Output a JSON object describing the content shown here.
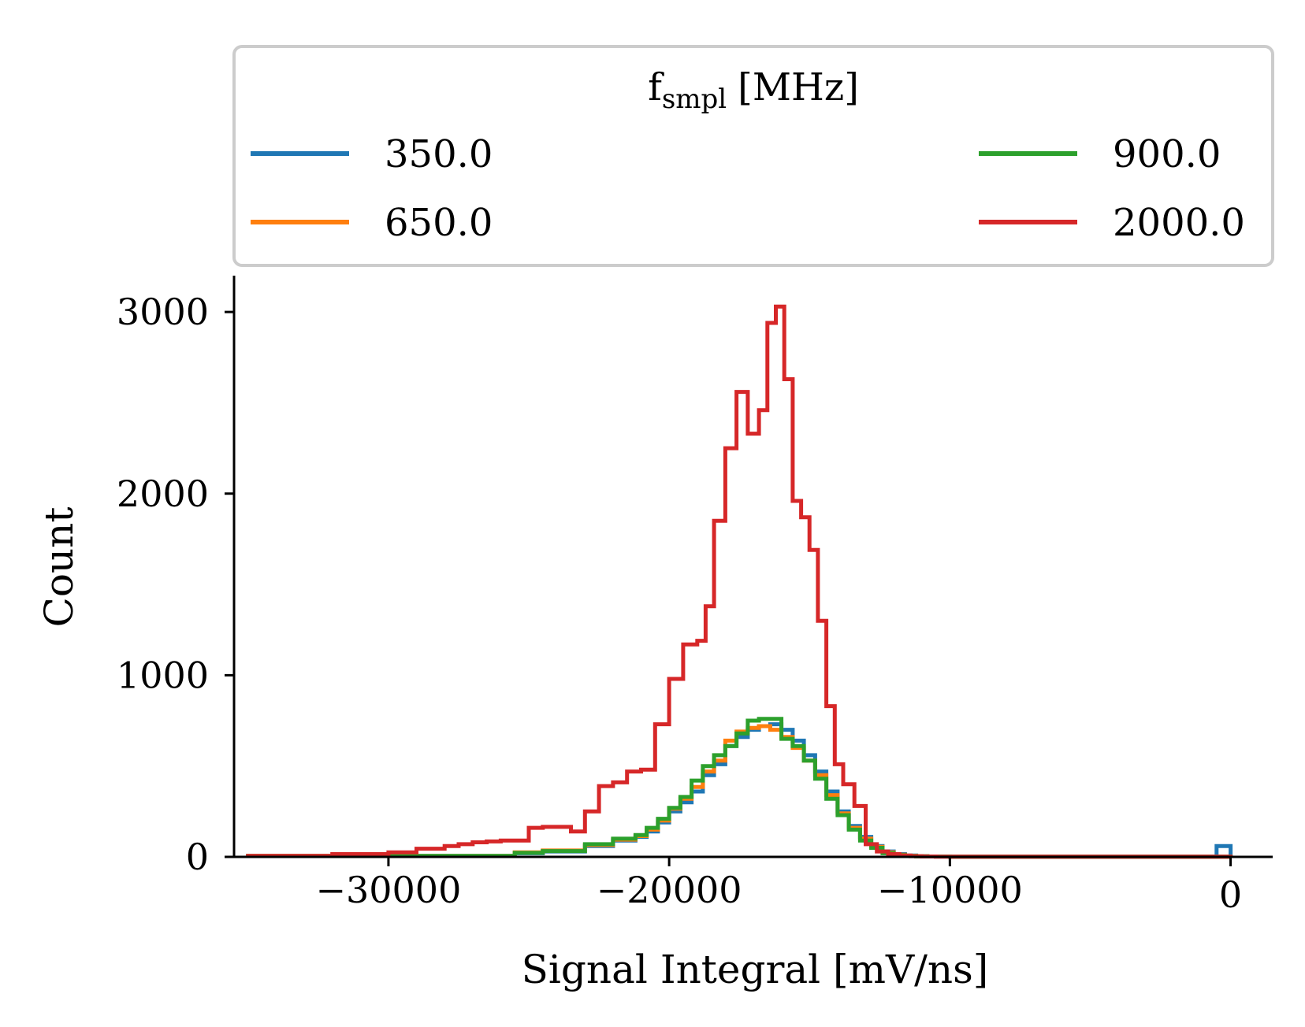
{
  "chart_data": {
    "type": "histogram_step",
    "xlabel": "Signal Integral [mV/ns]",
    "ylabel": "Count",
    "xlim": [
      -35500,
      1500
    ],
    "ylim": [
      0,
      3200
    ],
    "xticks": [
      -30000,
      -20000,
      -10000,
      0
    ],
    "xtick_labels": [
      "−30000",
      "−20000",
      "−10000",
      "0"
    ],
    "yticks": [
      0,
      1000,
      2000,
      3000
    ],
    "ytick_labels": [
      "0",
      "1000",
      "2000",
      "3000"
    ],
    "legend": {
      "title_main": "f",
      "title_sub": "smpl",
      "title_unit": "[MHz]",
      "placement": "top"
    },
    "series": [
      {
        "name": "350.0",
        "color": "#1f77b4",
        "edges": [
          -35000,
          -25500,
          -24500,
          -23000,
          -22000,
          -21200,
          -20800,
          -20400,
          -20000,
          -19600,
          -19200,
          -18800,
          -18400,
          -18000,
          -17600,
          -17200,
          -16800,
          -16400,
          -16000,
          -15600,
          -15200,
          -14800,
          -14400,
          -14000,
          -13600,
          -13200,
          -12800,
          -12400,
          -12000,
          -11600,
          -11200,
          -10800,
          -10000,
          -500,
          0
        ],
        "counts": [
          5,
          20,
          30,
          60,
          90,
          110,
          140,
          190,
          250,
          300,
          360,
          450,
          510,
          610,
          660,
          700,
          720,
          730,
          700,
          640,
          560,
          470,
          360,
          250,
          170,
          110,
          60,
          30,
          15,
          8,
          4,
          2,
          1,
          60
        ]
      },
      {
        "name": "650.0",
        "color": "#ff7f0e",
        "edges": [
          -35000,
          -25500,
          -24500,
          -23000,
          -22000,
          -21200,
          -20800,
          -20400,
          -20000,
          -19600,
          -19200,
          -18800,
          -18400,
          -18000,
          -17600,
          -17200,
          -16800,
          -16400,
          -16000,
          -15600,
          -15200,
          -14800,
          -14400,
          -14000,
          -13600,
          -13200,
          -12800,
          -12400,
          -12000,
          -11600,
          -11200,
          -10800,
          -10000,
          0
        ],
        "counts": [
          5,
          25,
          35,
          65,
          95,
          115,
          150,
          200,
          265,
          320,
          385,
          470,
          530,
          640,
          690,
          710,
          720,
          700,
          660,
          600,
          530,
          450,
          340,
          240,
          160,
          100,
          55,
          25,
          12,
          6,
          3,
          2,
          1
        ]
      },
      {
        "name": "900.0",
        "color": "#2ca02c",
        "edges": [
          -35000,
          -25500,
          -24500,
          -23000,
          -22000,
          -21200,
          -20800,
          -20400,
          -20000,
          -19600,
          -19200,
          -18800,
          -18400,
          -18000,
          -17600,
          -17200,
          -16800,
          -16400,
          -16000,
          -15600,
          -15200,
          -14800,
          -14400,
          -14000,
          -13600,
          -13200,
          -12800,
          -12400,
          -12000,
          -11600,
          -11200,
          -10800,
          -10000,
          0
        ],
        "counts": [
          5,
          22,
          32,
          70,
          100,
          120,
          160,
          210,
          270,
          330,
          420,
          500,
          560,
          610,
          680,
          750,
          760,
          760,
          650,
          610,
          530,
          430,
          320,
          230,
          150,
          90,
          50,
          20,
          10,
          5,
          3,
          2,
          1
        ]
      },
      {
        "name": "2000.0",
        "color": "#d62728",
        "edges": [
          -35000,
          -32000,
          -30000,
          -29000,
          -28000,
          -27500,
          -27000,
          -26500,
          -26000,
          -25000,
          -24500,
          -23500,
          -23000,
          -22500,
          -22000,
          -21500,
          -21000,
          -20500,
          -20000,
          -19500,
          -19000,
          -18700,
          -18400,
          -18000,
          -17600,
          -17200,
          -16800,
          -16500,
          -16200,
          -15900,
          -15600,
          -15300,
          -15000,
          -14700,
          -14400,
          -14100,
          -13800,
          -13400,
          -13000,
          -12600,
          -12200,
          -11800,
          -11400,
          -11000,
          -10500,
          0
        ],
        "counts": [
          5,
          15,
          25,
          45,
          60,
          70,
          80,
          85,
          90,
          160,
          165,
          140,
          250,
          390,
          410,
          470,
          480,
          730,
          980,
          1170,
          1190,
          1380,
          1850,
          2250,
          2560,
          2330,
          2460,
          2940,
          3030,
          2630,
          1960,
          1870,
          1690,
          1300,
          830,
          510,
          400,
          280,
          70,
          30,
          15,
          8,
          4,
          2,
          1
        ]
      }
    ]
  }
}
